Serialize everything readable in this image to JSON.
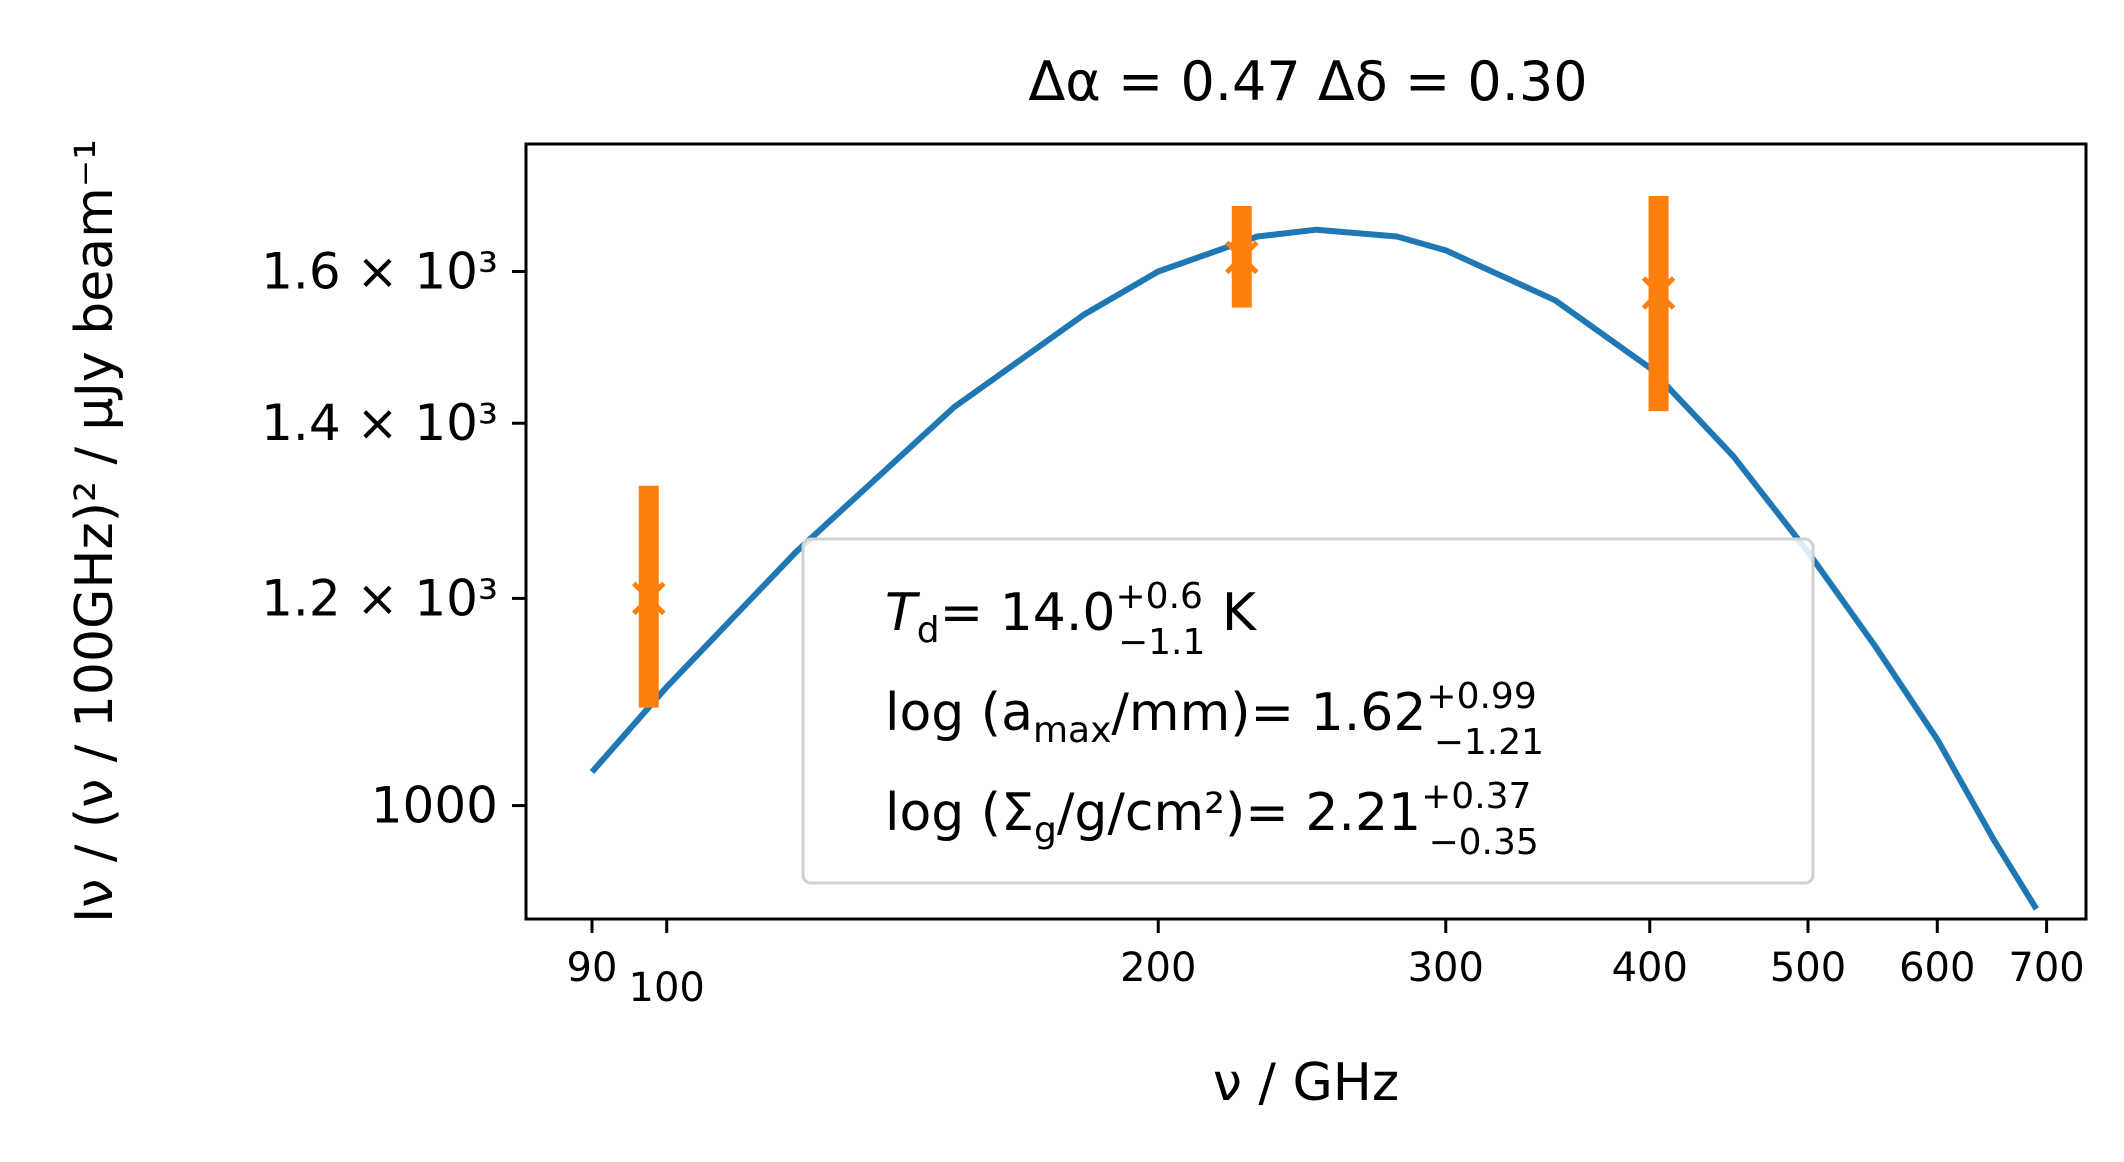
{
  "chart_data": {
    "type": "line",
    "title": "Δα = 0.47   Δδ = 0.30",
    "xlabel": "ν   / GHz",
    "ylabel": "Iν / (ν / 100GHz)²   / μJy beam⁻¹",
    "xscale": "log",
    "yscale": "log",
    "xlim": [
      82,
      740
    ],
    "ylim": [
      905,
      1790
    ],
    "grid": false,
    "xticks": [
      {
        "value": 90,
        "label": "90"
      },
      {
        "value": 100,
        "label": "100"
      },
      {
        "value": 200,
        "label": "200"
      },
      {
        "value": 300,
        "label": "300"
      },
      {
        "value": 400,
        "label": "400"
      },
      {
        "value": 500,
        "label": "500"
      },
      {
        "value": 600,
        "label": "600"
      },
      {
        "value": 700,
        "label": "700"
      }
    ],
    "yticks": [
      {
        "value": 1000,
        "label": "1000"
      },
      {
        "value": 1200,
        "label": "1.2 × 10³"
      },
      {
        "value": 1400,
        "label": "1.4 × 10³"
      },
      {
        "value": 1600,
        "label": "1.6 × 10³"
      }
    ],
    "model_curve": {
      "color": "#1f77b4",
      "x": [
        90,
        100,
        120,
        150,
        180,
        200,
        230,
        250,
        280,
        300,
        350,
        400,
        450,
        500,
        550,
        600,
        650,
        690
      ],
      "y": [
        1030,
        1110,
        1250,
        1420,
        1540,
        1600,
        1650,
        1660,
        1650,
        1630,
        1560,
        1470,
        1360,
        1250,
        1150,
        1060,
        970,
        913
      ]
    },
    "observations": {
      "color": "#ff7f0e",
      "points": [
        {
          "x": 97.5,
          "y": 1200,
          "y_low": 1090,
          "y_high": 1325
        },
        {
          "x": 225,
          "y": 1620,
          "y_low": 1550,
          "y_high": 1695
        },
        {
          "x": 405,
          "y": 1570,
          "y_low": 1415,
          "y_high": 1710
        }
      ]
    },
    "legend": {
      "placement": "lower-center",
      "entries": [
        {
          "label": "T",
          "sub": "d",
          "value": "= 14.0",
          "sup": "+0.6",
          "subval": "−1.1",
          "unit": "  K"
        },
        {
          "label": "log (a",
          "sub": "max",
          "rest": "/mm)",
          "value": "= 1.62",
          "sup": "+0.99",
          "subval": "−1.21"
        },
        {
          "label": "log (Σ",
          "sub": "g",
          "rest": "/g/cm²)",
          "value": "= 2.21",
          "sup": "+0.37",
          "subval": "−0.35"
        }
      ]
    }
  }
}
